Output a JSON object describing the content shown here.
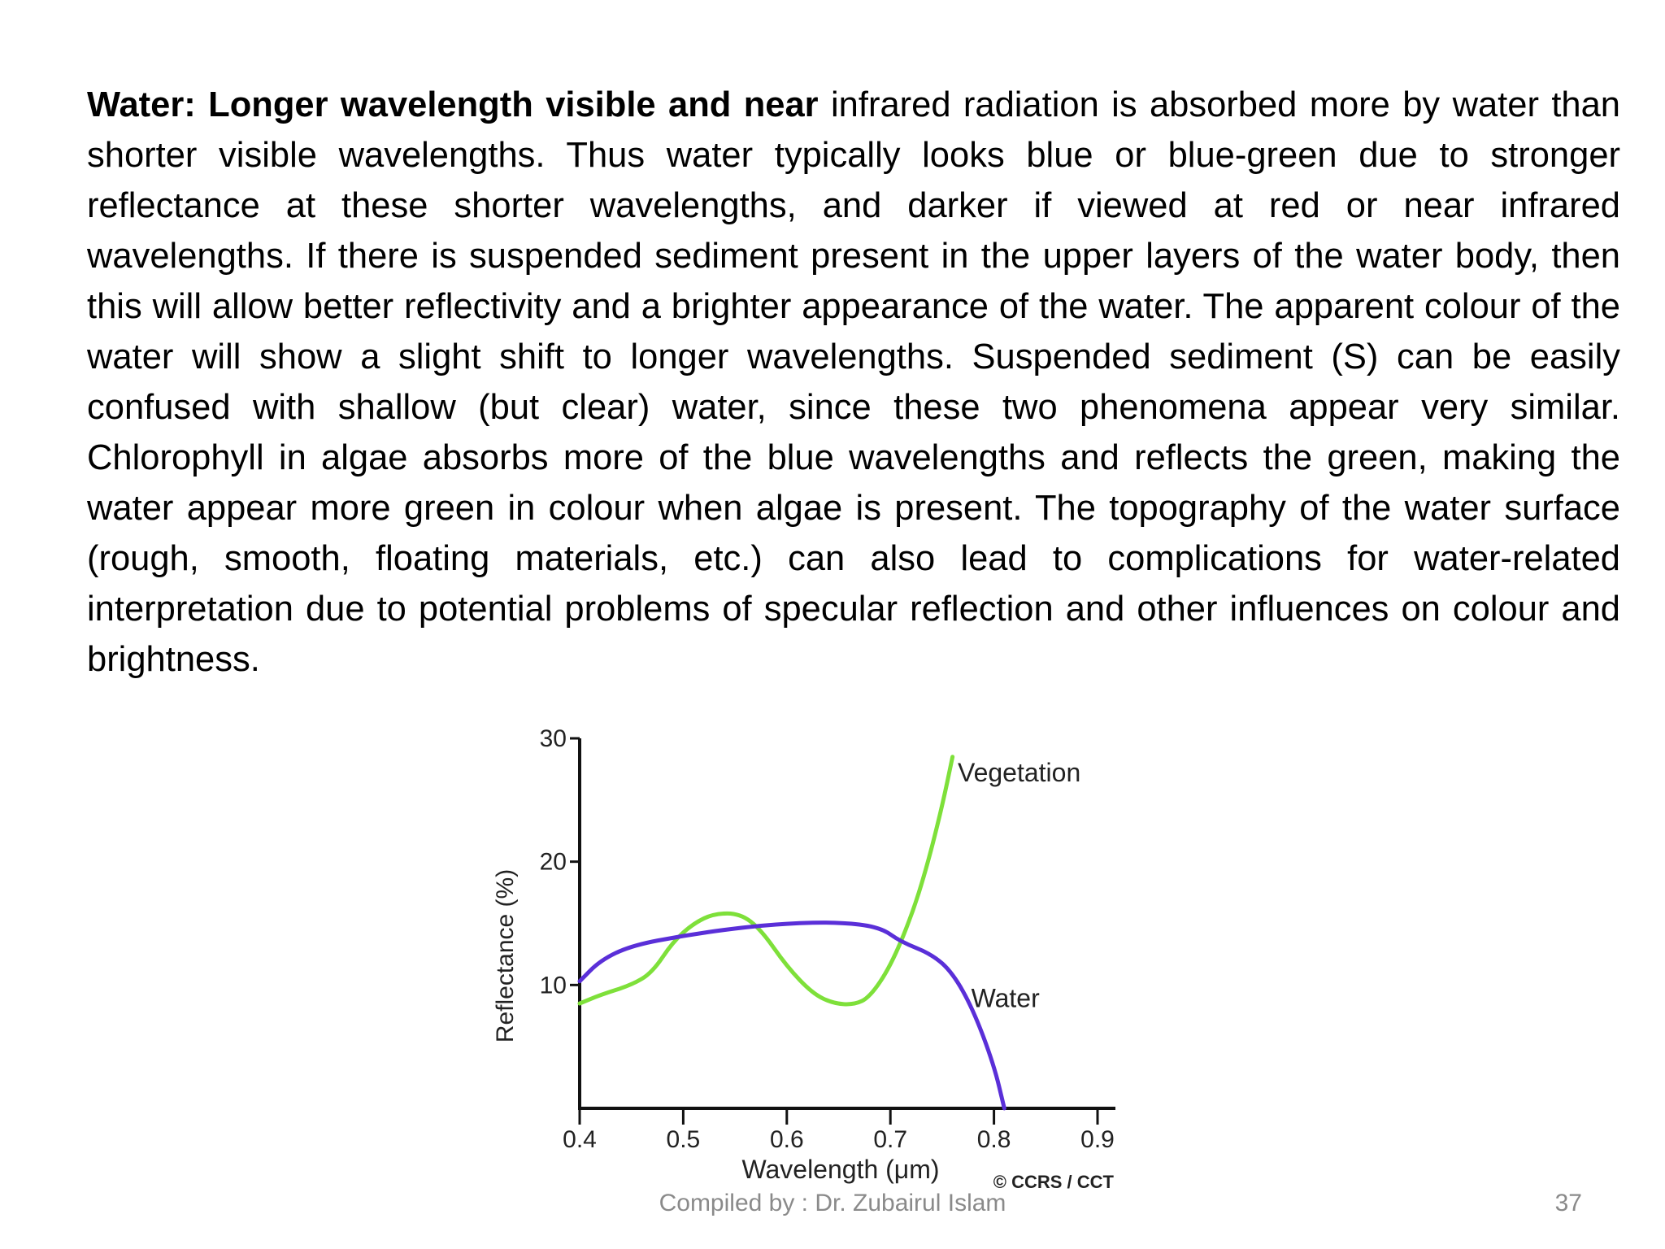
{
  "body": {
    "lead": "Water: Longer wavelength visible and near",
    "text": " infrared radiation is absorbed more by water than shorter visible wavelengths. Thus water typically looks blue or blue-green due to stronger reflectance at these shorter wavelengths, and darker if viewed at red or near infrared wavelengths. If there is suspended sediment present in the upper layers of the water body, then this will allow better reflectivity and a brighter appearance of the water. The apparent colour of the water will show a slight shift to longer wavelengths. Suspended sediment (S) can be easily confused with shallow (but clear) water, since these two phenomena appear very similar. Chlorophyll in algae absorbs more of the blue wavelengths and reflects the green, making the water appear more green in colour when algae is present. The topography of the water surface (rough, smooth, floating materials, etc.) can also lead to complications for water-related interpretation due to potential problems of specular reflection and other influences on colour and brightness."
  },
  "chart_data": {
    "type": "line",
    "xlabel": "Wavelength (μm)",
    "ylabel": "Reflectance (%)",
    "xlim": [
      0.4,
      0.9
    ],
    "ylim": [
      0,
      30
    ],
    "x_ticks": [
      "0.4",
      "0.5",
      "0.6",
      "0.7",
      "0.8",
      "0.9"
    ],
    "y_ticks": [
      "10",
      "20",
      "30"
    ],
    "credit": "© CCRS / CCT",
    "series": [
      {
        "name": "Vegetation",
        "color": "#7ee03a",
        "points": [
          [
            0.4,
            8.5
          ],
          [
            0.42,
            9.2
          ],
          [
            0.45,
            10.0
          ],
          [
            0.47,
            11.0
          ],
          [
            0.49,
            13.5
          ],
          [
            0.51,
            15.0
          ],
          [
            0.53,
            15.8
          ],
          [
            0.555,
            15.8
          ],
          [
            0.575,
            14.5
          ],
          [
            0.6,
            11.5
          ],
          [
            0.625,
            9.3
          ],
          [
            0.645,
            8.5
          ],
          [
            0.665,
            8.4
          ],
          [
            0.68,
            9.0
          ],
          [
            0.7,
            11.5
          ],
          [
            0.72,
            15.5
          ],
          [
            0.735,
            19.5
          ],
          [
            0.75,
            24.5
          ],
          [
            0.76,
            28.5
          ]
        ]
      },
      {
        "name": "Water",
        "color": "#5a2fd8",
        "points": [
          [
            0.4,
            10.3
          ],
          [
            0.42,
            12.0
          ],
          [
            0.45,
            13.2
          ],
          [
            0.5,
            14.0
          ],
          [
            0.55,
            14.6
          ],
          [
            0.6,
            15.0
          ],
          [
            0.65,
            15.1
          ],
          [
            0.69,
            14.7
          ],
          [
            0.71,
            13.5
          ],
          [
            0.74,
            12.5
          ],
          [
            0.76,
            11.0
          ],
          [
            0.78,
            8.0
          ],
          [
            0.8,
            3.5
          ],
          [
            0.81,
            0.0
          ]
        ]
      }
    ]
  },
  "footer": {
    "credit": "Compiled by : Dr. Zubairul Islam",
    "page": "37"
  }
}
